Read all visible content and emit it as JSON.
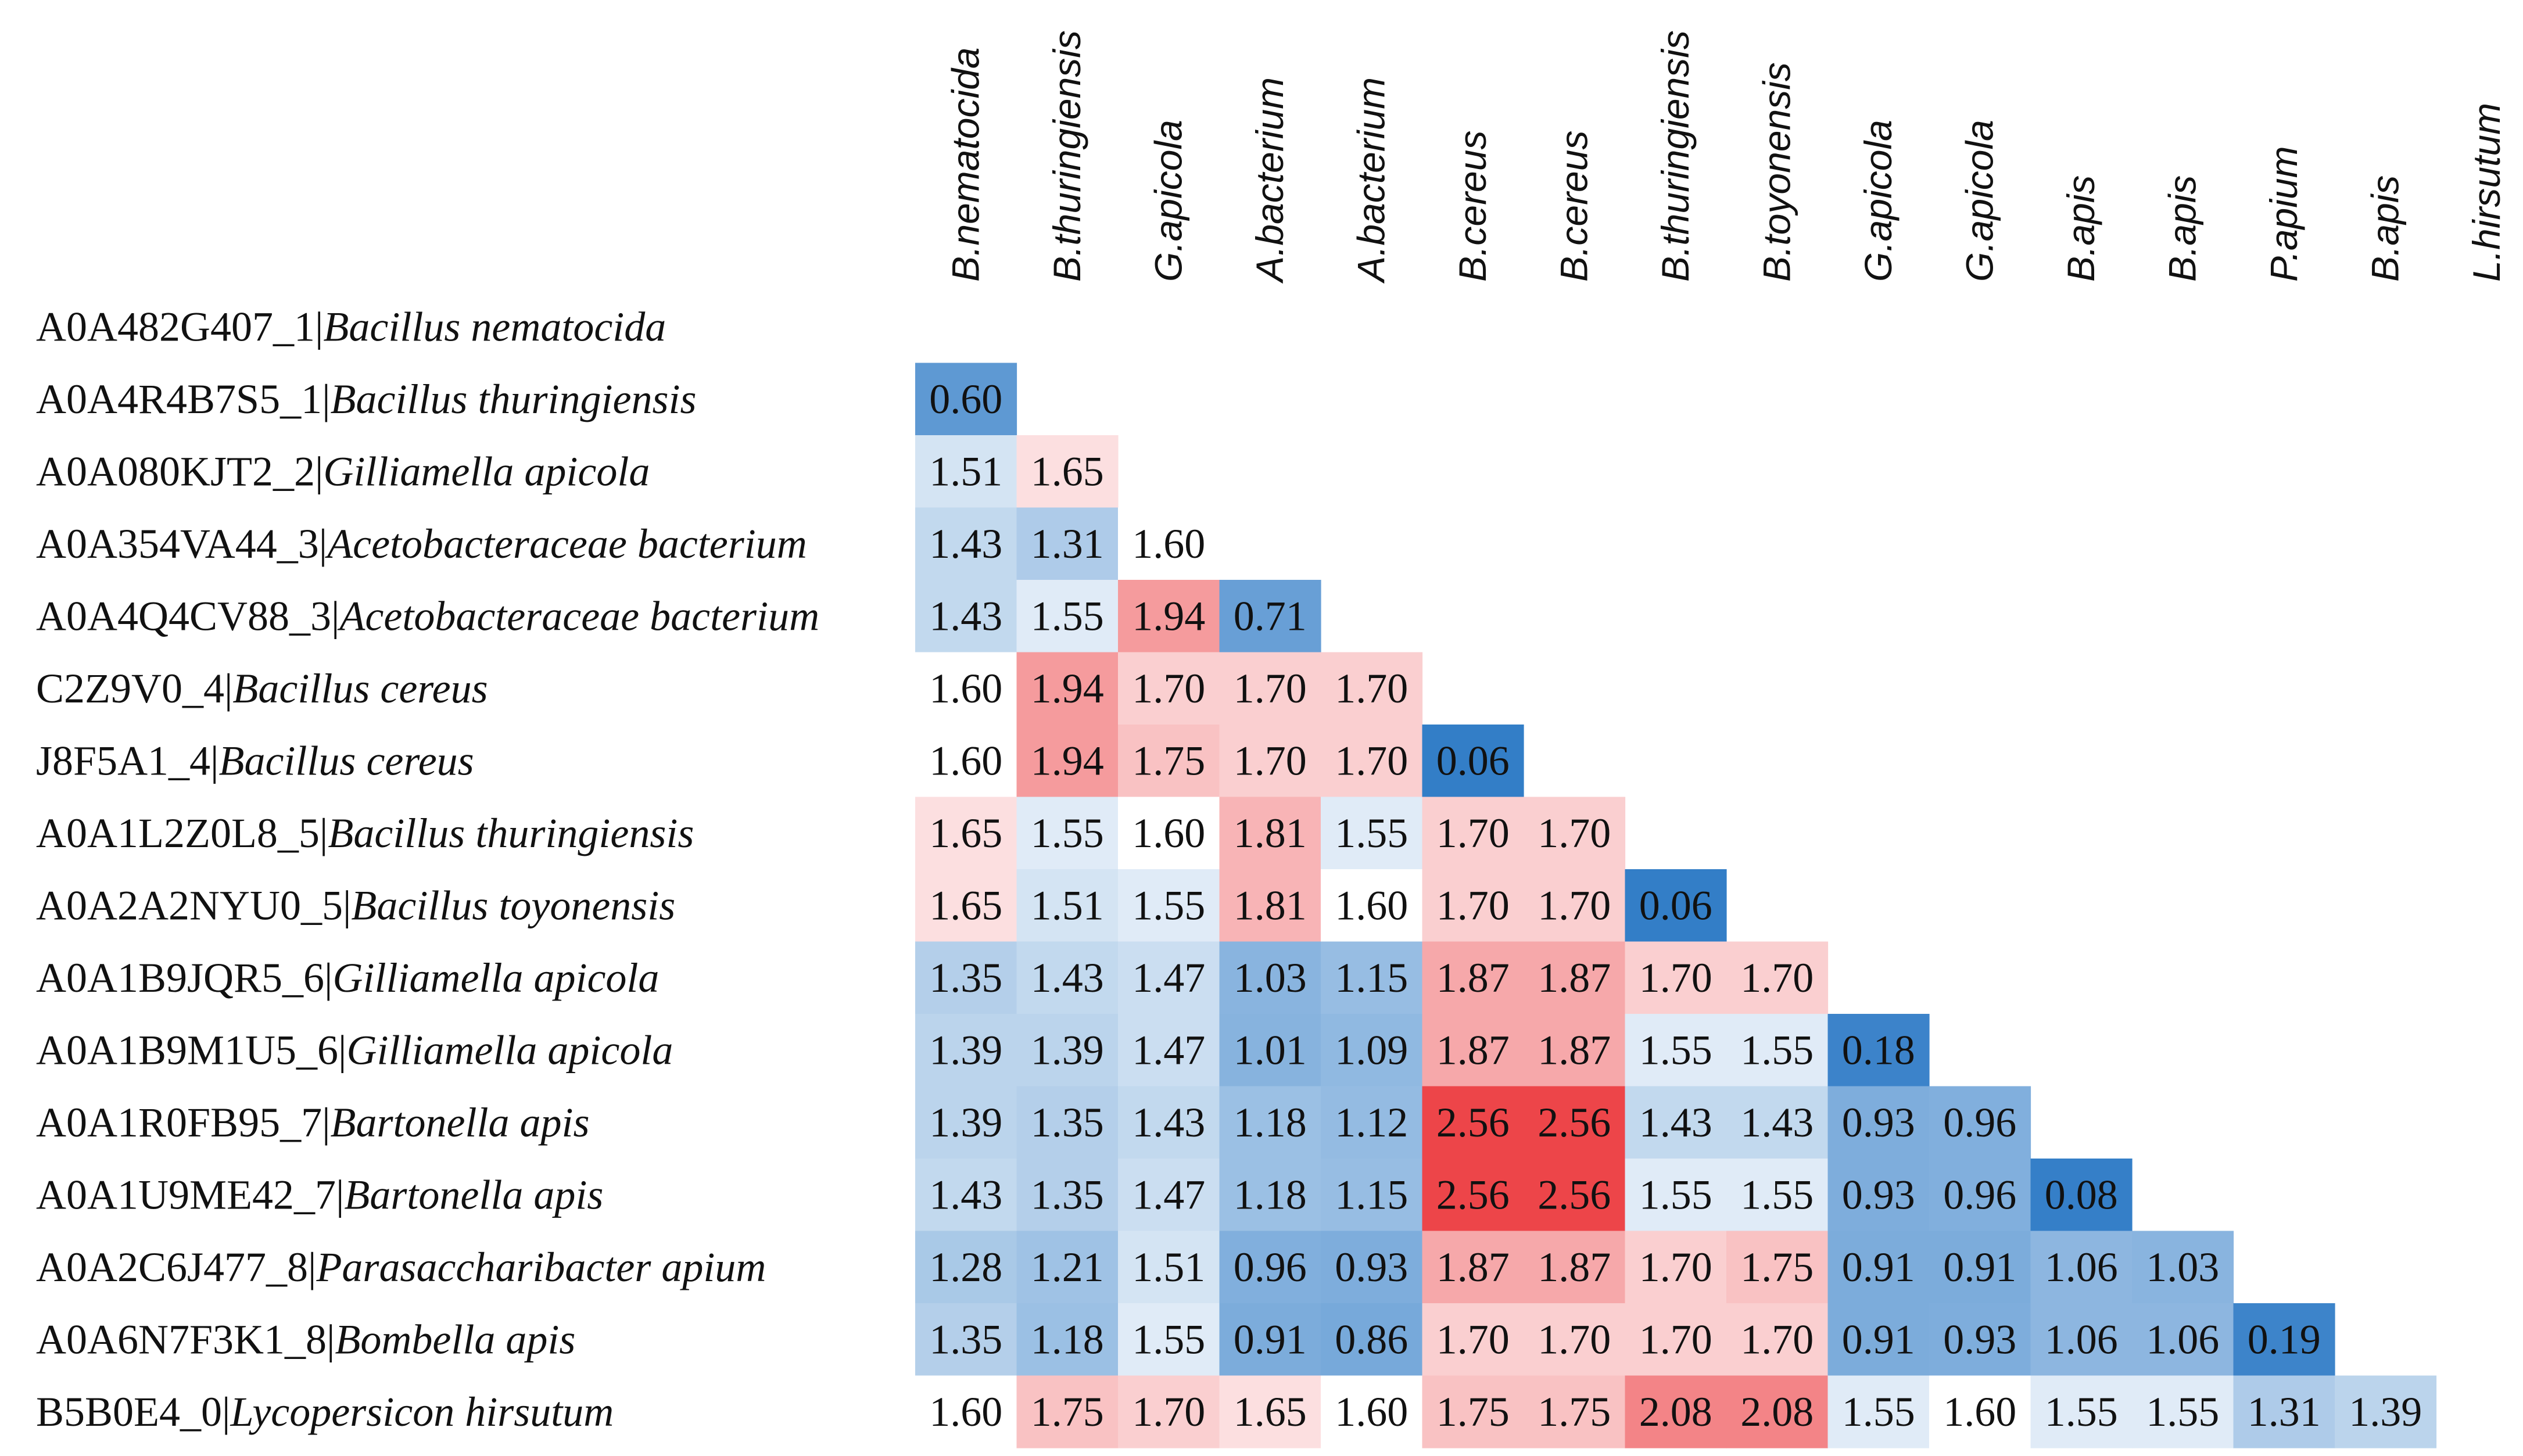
{
  "chart_data": {
    "type": "heatmap",
    "title": "",
    "columns": [
      "B.nematocida",
      "B.thuringiensis",
      "G.apicola",
      "A.bacterium",
      "A.bacterium",
      "B.cereus",
      "B.cereus",
      "B.thuringiensis",
      "B.toyonensis",
      "G.apicola",
      "G.apicola",
      "B.apis",
      "B.apis",
      "P.apium",
      "B.apis",
      "L.hirsutum"
    ],
    "rows": [
      {
        "id": "A0A482G407_1|",
        "species": "Bacillus nematocida"
      },
      {
        "id": "A0A4R4B7S5_1|",
        "species": "Bacillus thuringiensis"
      },
      {
        "id": "A0A080KJT2_2|",
        "species": "Gilliamella apicola"
      },
      {
        "id": "A0A354VA44_3|",
        "species": "Acetobacteraceae bacterium"
      },
      {
        "id": "A0A4Q4CV88_3|",
        "species": "Acetobacteraceae bacterium"
      },
      {
        "id": "C2Z9V0_4|",
        "species": "Bacillus cereus"
      },
      {
        "id": "J8F5A1_4|",
        "species": "Bacillus cereus"
      },
      {
        "id": "A0A1L2Z0L8_5|",
        "species": "Bacillus thuringiensis"
      },
      {
        "id": "A0A2A2NYU0_5|",
        "species": "Bacillus toyonensis"
      },
      {
        "id": "A0A1B9JQR5_6|",
        "species": "Gilliamella apicola"
      },
      {
        "id": "A0A1B9M1U5_6|",
        "species": "Gilliamella apicola"
      },
      {
        "id": "A0A1R0FB95_7|",
        "species": "Bartonella apis"
      },
      {
        "id": "A0A1U9ME42_7|",
        "species": "Bartonella apis"
      },
      {
        "id": "A0A2C6J477_8|",
        "species": "Parasaccharibacter apium"
      },
      {
        "id": "A0A6N7F3K1_8|",
        "species": "Bombella apis"
      },
      {
        "id": "B5B0E4_0|",
        "species": "Lycopersicon hirsutum"
      }
    ],
    "values": [
      [],
      [
        0.6
      ],
      [
        1.51,
        1.65
      ],
      [
        1.43,
        1.31,
        1.6
      ],
      [
        1.43,
        1.55,
        1.94,
        0.71
      ],
      [
        1.6,
        1.94,
        1.7,
        1.7,
        1.7
      ],
      [
        1.6,
        1.94,
        1.75,
        1.7,
        1.7,
        0.06
      ],
      [
        1.65,
        1.55,
        1.6,
        1.81,
        1.55,
        1.7,
        1.7
      ],
      [
        1.65,
        1.51,
        1.55,
        1.81,
        1.6,
        1.7,
        1.7,
        0.06
      ],
      [
        1.35,
        1.43,
        1.47,
        1.03,
        1.15,
        1.87,
        1.87,
        1.7,
        1.7
      ],
      [
        1.39,
        1.39,
        1.47,
        1.01,
        1.09,
        1.87,
        1.87,
        1.55,
        1.55,
        0.18
      ],
      [
        1.39,
        1.35,
        1.43,
        1.18,
        1.12,
        2.56,
        2.56,
        1.43,
        1.43,
        0.93,
        0.96
      ],
      [
        1.43,
        1.35,
        1.47,
        1.18,
        1.15,
        2.56,
        2.56,
        1.55,
        1.55,
        0.93,
        0.96,
        0.08
      ],
      [
        1.28,
        1.21,
        1.51,
        0.96,
        0.93,
        1.87,
        1.87,
        1.7,
        1.75,
        0.91,
        0.91,
        1.06,
        1.03
      ],
      [
        1.35,
        1.18,
        1.55,
        0.91,
        0.86,
        1.7,
        1.7,
        1.7,
        1.7,
        0.91,
        0.93,
        1.06,
        1.06,
        0.19
      ],
      [
        1.6,
        1.75,
        1.7,
        1.65,
        1.6,
        1.75,
        1.75,
        2.08,
        2.08,
        1.55,
        1.6,
        1.55,
        1.55,
        1.31,
        1.39
      ]
    ],
    "color_scale": {
      "low_color": "#2f7bc6",
      "mid_color": "#ffffff",
      "high_color": "#ec3f43",
      "low_value": 0.0,
      "mid_value": 1.6,
      "high_value": 2.56
    },
    "legend": "none",
    "grid": false
  }
}
